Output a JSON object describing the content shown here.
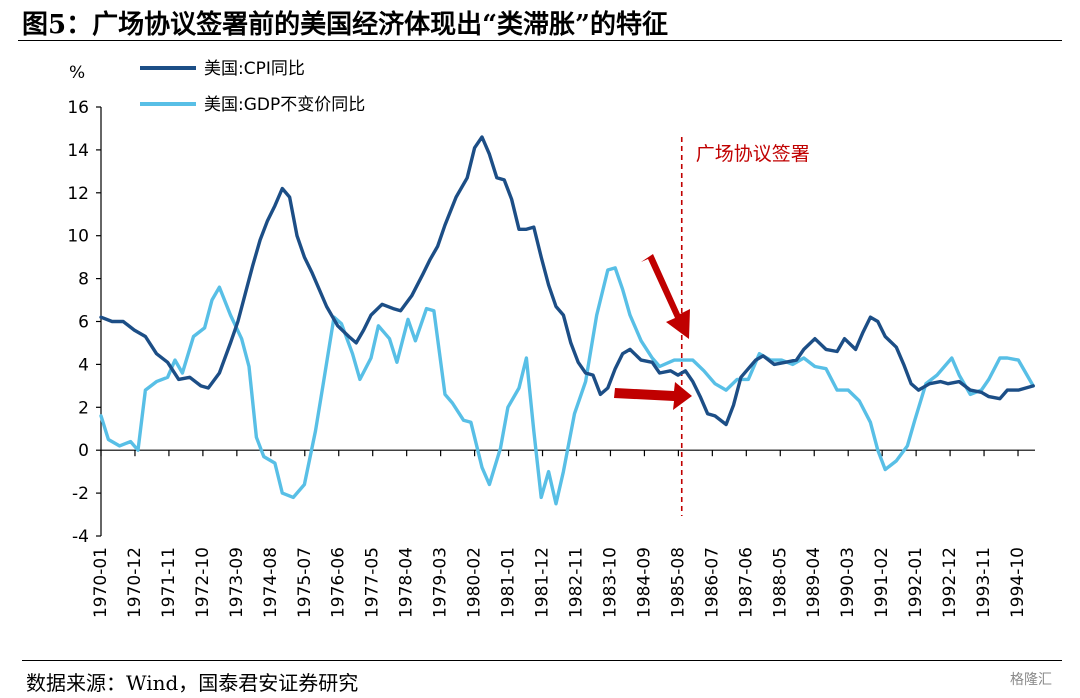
{
  "header": {
    "title": "图5：广场协议签署前的美国经济体现出“类滞胀”的特征"
  },
  "footer": {
    "source": "数据来源：Wind，国泰君安证券研究",
    "watermark": "格隆汇"
  },
  "colors": {
    "cpi": "#1c4e86",
    "gdp": "#58bfe6",
    "arrow": "#c00000",
    "vline": "#c00000"
  },
  "chart_data": {
    "type": "line",
    "ylabel": "%",
    "ylim": [
      -4,
      16
    ],
    "yticks": [
      16,
      14,
      12,
      10,
      8,
      6,
      4,
      2,
      0,
      -2,
      -4
    ],
    "xlim": [
      1970.0,
      1995.25
    ],
    "xtick_labels": [
      "1970-01",
      "1970-12",
      "1971-11",
      "1972-10",
      "1973-09",
      "1974-08",
      "1975-07",
      "1976-06",
      "1977-05",
      "1978-04",
      "1979-03",
      "1980-02",
      "1981-01",
      "1981-12",
      "1982-11",
      "1983-10",
      "1984-09",
      "1985-08",
      "1986-07",
      "1987-06",
      "1988-05",
      "1989-04",
      "1990-03",
      "1991-02",
      "1992-01",
      "1992-12",
      "1993-11",
      "1994-10"
    ],
    "annotation": {
      "label": "广场协议签署",
      "x": 1985.7
    },
    "series": [
      {
        "name": "美国:CPI同比",
        "points": [
          [
            1970.0,
            6.2
          ],
          [
            1970.3,
            6.0
          ],
          [
            1970.6,
            6.0
          ],
          [
            1970.9,
            5.6
          ],
          [
            1971.2,
            5.3
          ],
          [
            1971.5,
            4.5
          ],
          [
            1971.8,
            4.1
          ],
          [
            1972.1,
            3.3
          ],
          [
            1972.4,
            3.4
          ],
          [
            1972.7,
            3.0
          ],
          [
            1972.9,
            2.9
          ],
          [
            1973.2,
            3.6
          ],
          [
            1973.5,
            5.0
          ],
          [
            1973.7,
            6.0
          ],
          [
            1973.9,
            7.3
          ],
          [
            1974.1,
            8.6
          ],
          [
            1974.3,
            9.8
          ],
          [
            1974.5,
            10.7
          ],
          [
            1974.7,
            11.4
          ],
          [
            1974.9,
            12.2
          ],
          [
            1975.1,
            11.8
          ],
          [
            1975.3,
            10.0
          ],
          [
            1975.5,
            9.0
          ],
          [
            1975.7,
            8.3
          ],
          [
            1975.9,
            7.5
          ],
          [
            1976.1,
            6.7
          ],
          [
            1976.4,
            5.8
          ],
          [
            1976.7,
            5.3
          ],
          [
            1976.9,
            5.0
          ],
          [
            1977.1,
            5.6
          ],
          [
            1977.3,
            6.3
          ],
          [
            1977.6,
            6.8
          ],
          [
            1977.9,
            6.6
          ],
          [
            1978.1,
            6.5
          ],
          [
            1978.4,
            7.2
          ],
          [
            1978.7,
            8.2
          ],
          [
            1978.9,
            8.9
          ],
          [
            1979.1,
            9.5
          ],
          [
            1979.3,
            10.5
          ],
          [
            1979.6,
            11.8
          ],
          [
            1979.9,
            12.7
          ],
          [
            1980.1,
            14.1
          ],
          [
            1980.3,
            14.6
          ],
          [
            1980.5,
            13.8
          ],
          [
            1980.7,
            12.7
          ],
          [
            1980.9,
            12.6
          ],
          [
            1981.1,
            11.7
          ],
          [
            1981.3,
            10.3
          ],
          [
            1981.5,
            10.3
          ],
          [
            1981.7,
            10.4
          ],
          [
            1981.9,
            9.0
          ],
          [
            1982.1,
            7.7
          ],
          [
            1982.3,
            6.7
          ],
          [
            1982.5,
            6.3
          ],
          [
            1982.7,
            5.0
          ],
          [
            1982.9,
            4.1
          ],
          [
            1983.1,
            3.6
          ],
          [
            1983.3,
            3.5
          ],
          [
            1983.5,
            2.6
          ],
          [
            1983.7,
            2.9
          ],
          [
            1983.9,
            3.8
          ],
          [
            1984.1,
            4.5
          ],
          [
            1984.3,
            4.7
          ],
          [
            1984.6,
            4.2
          ],
          [
            1984.9,
            4.1
          ],
          [
            1985.1,
            3.6
          ],
          [
            1985.4,
            3.7
          ],
          [
            1985.6,
            3.5
          ],
          [
            1985.8,
            3.7
          ],
          [
            1986.0,
            3.2
          ],
          [
            1986.2,
            2.5
          ],
          [
            1986.4,
            1.7
          ],
          [
            1986.6,
            1.6
          ],
          [
            1986.9,
            1.2
          ],
          [
            1987.1,
            2.1
          ],
          [
            1987.3,
            3.4
          ],
          [
            1987.5,
            3.8
          ],
          [
            1987.7,
            4.2
          ],
          [
            1987.9,
            4.4
          ],
          [
            1988.2,
            4.0
          ],
          [
            1988.5,
            4.1
          ],
          [
            1988.8,
            4.2
          ],
          [
            1989.0,
            4.7
          ],
          [
            1989.3,
            5.2
          ],
          [
            1989.6,
            4.7
          ],
          [
            1989.9,
            4.6
          ],
          [
            1990.1,
            5.2
          ],
          [
            1990.4,
            4.7
          ],
          [
            1990.6,
            5.5
          ],
          [
            1990.8,
            6.2
          ],
          [
            1991.0,
            6.0
          ],
          [
            1991.2,
            5.3
          ],
          [
            1991.5,
            4.8
          ],
          [
            1991.7,
            4.0
          ],
          [
            1991.9,
            3.1
          ],
          [
            1992.1,
            2.8
          ],
          [
            1992.4,
            3.1
          ],
          [
            1992.7,
            3.2
          ],
          [
            1992.9,
            3.1
          ],
          [
            1993.2,
            3.2
          ],
          [
            1993.5,
            2.8
          ],
          [
            1993.8,
            2.7
          ],
          [
            1994.0,
            2.5
          ],
          [
            1994.3,
            2.4
          ],
          [
            1994.5,
            2.8
          ],
          [
            1994.8,
            2.8
          ],
          [
            1995.0,
            2.9
          ],
          [
            1995.2,
            3.0
          ]
        ]
      },
      {
        "name": "美国:GDP不变价同比",
        "points": [
          [
            1970.0,
            1.6
          ],
          [
            1970.2,
            0.5
          ],
          [
            1970.5,
            0.2
          ],
          [
            1970.8,
            0.4
          ],
          [
            1971.0,
            0.0
          ],
          [
            1971.2,
            2.8
          ],
          [
            1971.5,
            3.2
          ],
          [
            1971.8,
            3.4
          ],
          [
            1972.0,
            4.2
          ],
          [
            1972.2,
            3.6
          ],
          [
            1972.5,
            5.3
          ],
          [
            1972.8,
            5.7
          ],
          [
            1973.0,
            7.0
          ],
          [
            1973.2,
            7.6
          ],
          [
            1973.5,
            6.3
          ],
          [
            1973.8,
            5.2
          ],
          [
            1974.0,
            3.9
          ],
          [
            1974.2,
            0.6
          ],
          [
            1974.4,
            -0.3
          ],
          [
            1974.7,
            -0.6
          ],
          [
            1974.9,
            -2.0
          ],
          [
            1975.2,
            -2.2
          ],
          [
            1975.5,
            -1.6
          ],
          [
            1975.8,
            0.9
          ],
          [
            1976.0,
            3.0
          ],
          [
            1976.3,
            6.2
          ],
          [
            1976.5,
            5.9
          ],
          [
            1976.8,
            4.5
          ],
          [
            1977.0,
            3.3
          ],
          [
            1977.3,
            4.3
          ],
          [
            1977.5,
            5.8
          ],
          [
            1977.8,
            5.2
          ],
          [
            1978.0,
            4.1
          ],
          [
            1978.3,
            6.1
          ],
          [
            1978.5,
            5.1
          ],
          [
            1978.8,
            6.6
          ],
          [
            1979.0,
            6.5
          ],
          [
            1979.3,
            2.6
          ],
          [
            1979.5,
            2.2
          ],
          [
            1979.8,
            1.4
          ],
          [
            1980.0,
            1.3
          ],
          [
            1980.3,
            -0.8
          ],
          [
            1980.5,
            -1.6
          ],
          [
            1980.8,
            0.1
          ],
          [
            1981.0,
            2.0
          ],
          [
            1981.3,
            2.9
          ],
          [
            1981.5,
            4.3
          ],
          [
            1981.7,
            0.9
          ],
          [
            1981.9,
            -2.2
          ],
          [
            1982.1,
            -1.0
          ],
          [
            1982.3,
            -2.5
          ],
          [
            1982.5,
            -1.0
          ],
          [
            1982.8,
            1.7
          ],
          [
            1983.1,
            3.2
          ],
          [
            1983.4,
            6.3
          ],
          [
            1983.7,
            8.4
          ],
          [
            1983.9,
            8.5
          ],
          [
            1984.1,
            7.5
          ],
          [
            1984.3,
            6.3
          ],
          [
            1984.6,
            5.1
          ],
          [
            1984.9,
            4.3
          ],
          [
            1985.1,
            3.9
          ],
          [
            1985.5,
            4.2
          ],
          [
            1985.7,
            4.2
          ],
          [
            1986.0,
            4.2
          ],
          [
            1986.3,
            3.7
          ],
          [
            1986.6,
            3.1
          ],
          [
            1986.9,
            2.8
          ],
          [
            1987.2,
            3.3
          ],
          [
            1987.5,
            3.3
          ],
          [
            1987.8,
            4.5
          ],
          [
            1988.1,
            4.2
          ],
          [
            1988.4,
            4.2
          ],
          [
            1988.7,
            4.0
          ],
          [
            1989.0,
            4.3
          ],
          [
            1989.3,
            3.9
          ],
          [
            1989.6,
            3.8
          ],
          [
            1989.9,
            2.8
          ],
          [
            1990.2,
            2.8
          ],
          [
            1990.5,
            2.3
          ],
          [
            1990.8,
            1.3
          ],
          [
            1991.0,
            0.0
          ],
          [
            1991.2,
            -0.9
          ],
          [
            1991.5,
            -0.5
          ],
          [
            1991.8,
            0.2
          ],
          [
            1992.0,
            1.4
          ],
          [
            1992.3,
            3.1
          ],
          [
            1992.6,
            3.5
          ],
          [
            1992.9,
            4.1
          ],
          [
            1993.0,
            4.3
          ],
          [
            1993.2,
            3.5
          ],
          [
            1993.5,
            2.6
          ],
          [
            1993.8,
            2.8
          ],
          [
            1994.0,
            3.3
          ],
          [
            1994.3,
            4.3
          ],
          [
            1994.5,
            4.3
          ],
          [
            1994.8,
            4.2
          ],
          [
            1995.0,
            3.6
          ],
          [
            1995.2,
            3.0
          ]
        ]
      }
    ]
  }
}
